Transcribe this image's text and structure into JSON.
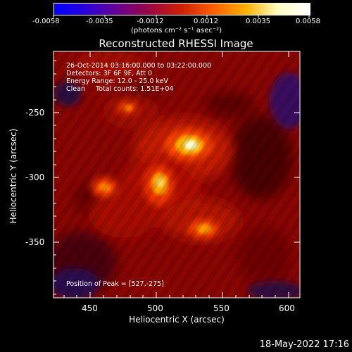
{
  "colorbar": {
    "ticks": [
      "-0.0058",
      "-0.0035",
      "-0.0012",
      "0.0012",
      "0.0035",
      "0.0058"
    ],
    "unit_label": "(photons cm⁻² s⁻¹ asec⁻²)",
    "colors": [
      "#0000ff",
      "#2a00d8",
      "#6a0090",
      "#9a0a40",
      "#d02000",
      "#ff6000",
      "#ffb000",
      "#ffffc0",
      "#ffffff"
    ]
  },
  "plot": {
    "title": "Reconstructed RHESSI Image",
    "xlabel": "Heliocentric X (arcsec)",
    "ylabel": "Heliocentric Y (arcsec)",
    "xticks": [
      "450",
      "500",
      "550",
      "600"
    ],
    "yticks": [
      "-250",
      "-300",
      "-350"
    ],
    "info_lines": [
      "26-Oct-2014 03:16:00.000 to 03:22:00.000",
      "Detectors: 3F 6F 9F, Att 0",
      "Energy Range: 12.0 - 25.0 keV",
      "Clean     Total counts: 1.51E+04"
    ],
    "peak_text": "Position of Peak = [527,-275]"
  },
  "footer": {
    "timestamp": "18-May-2022 17:16"
  }
}
